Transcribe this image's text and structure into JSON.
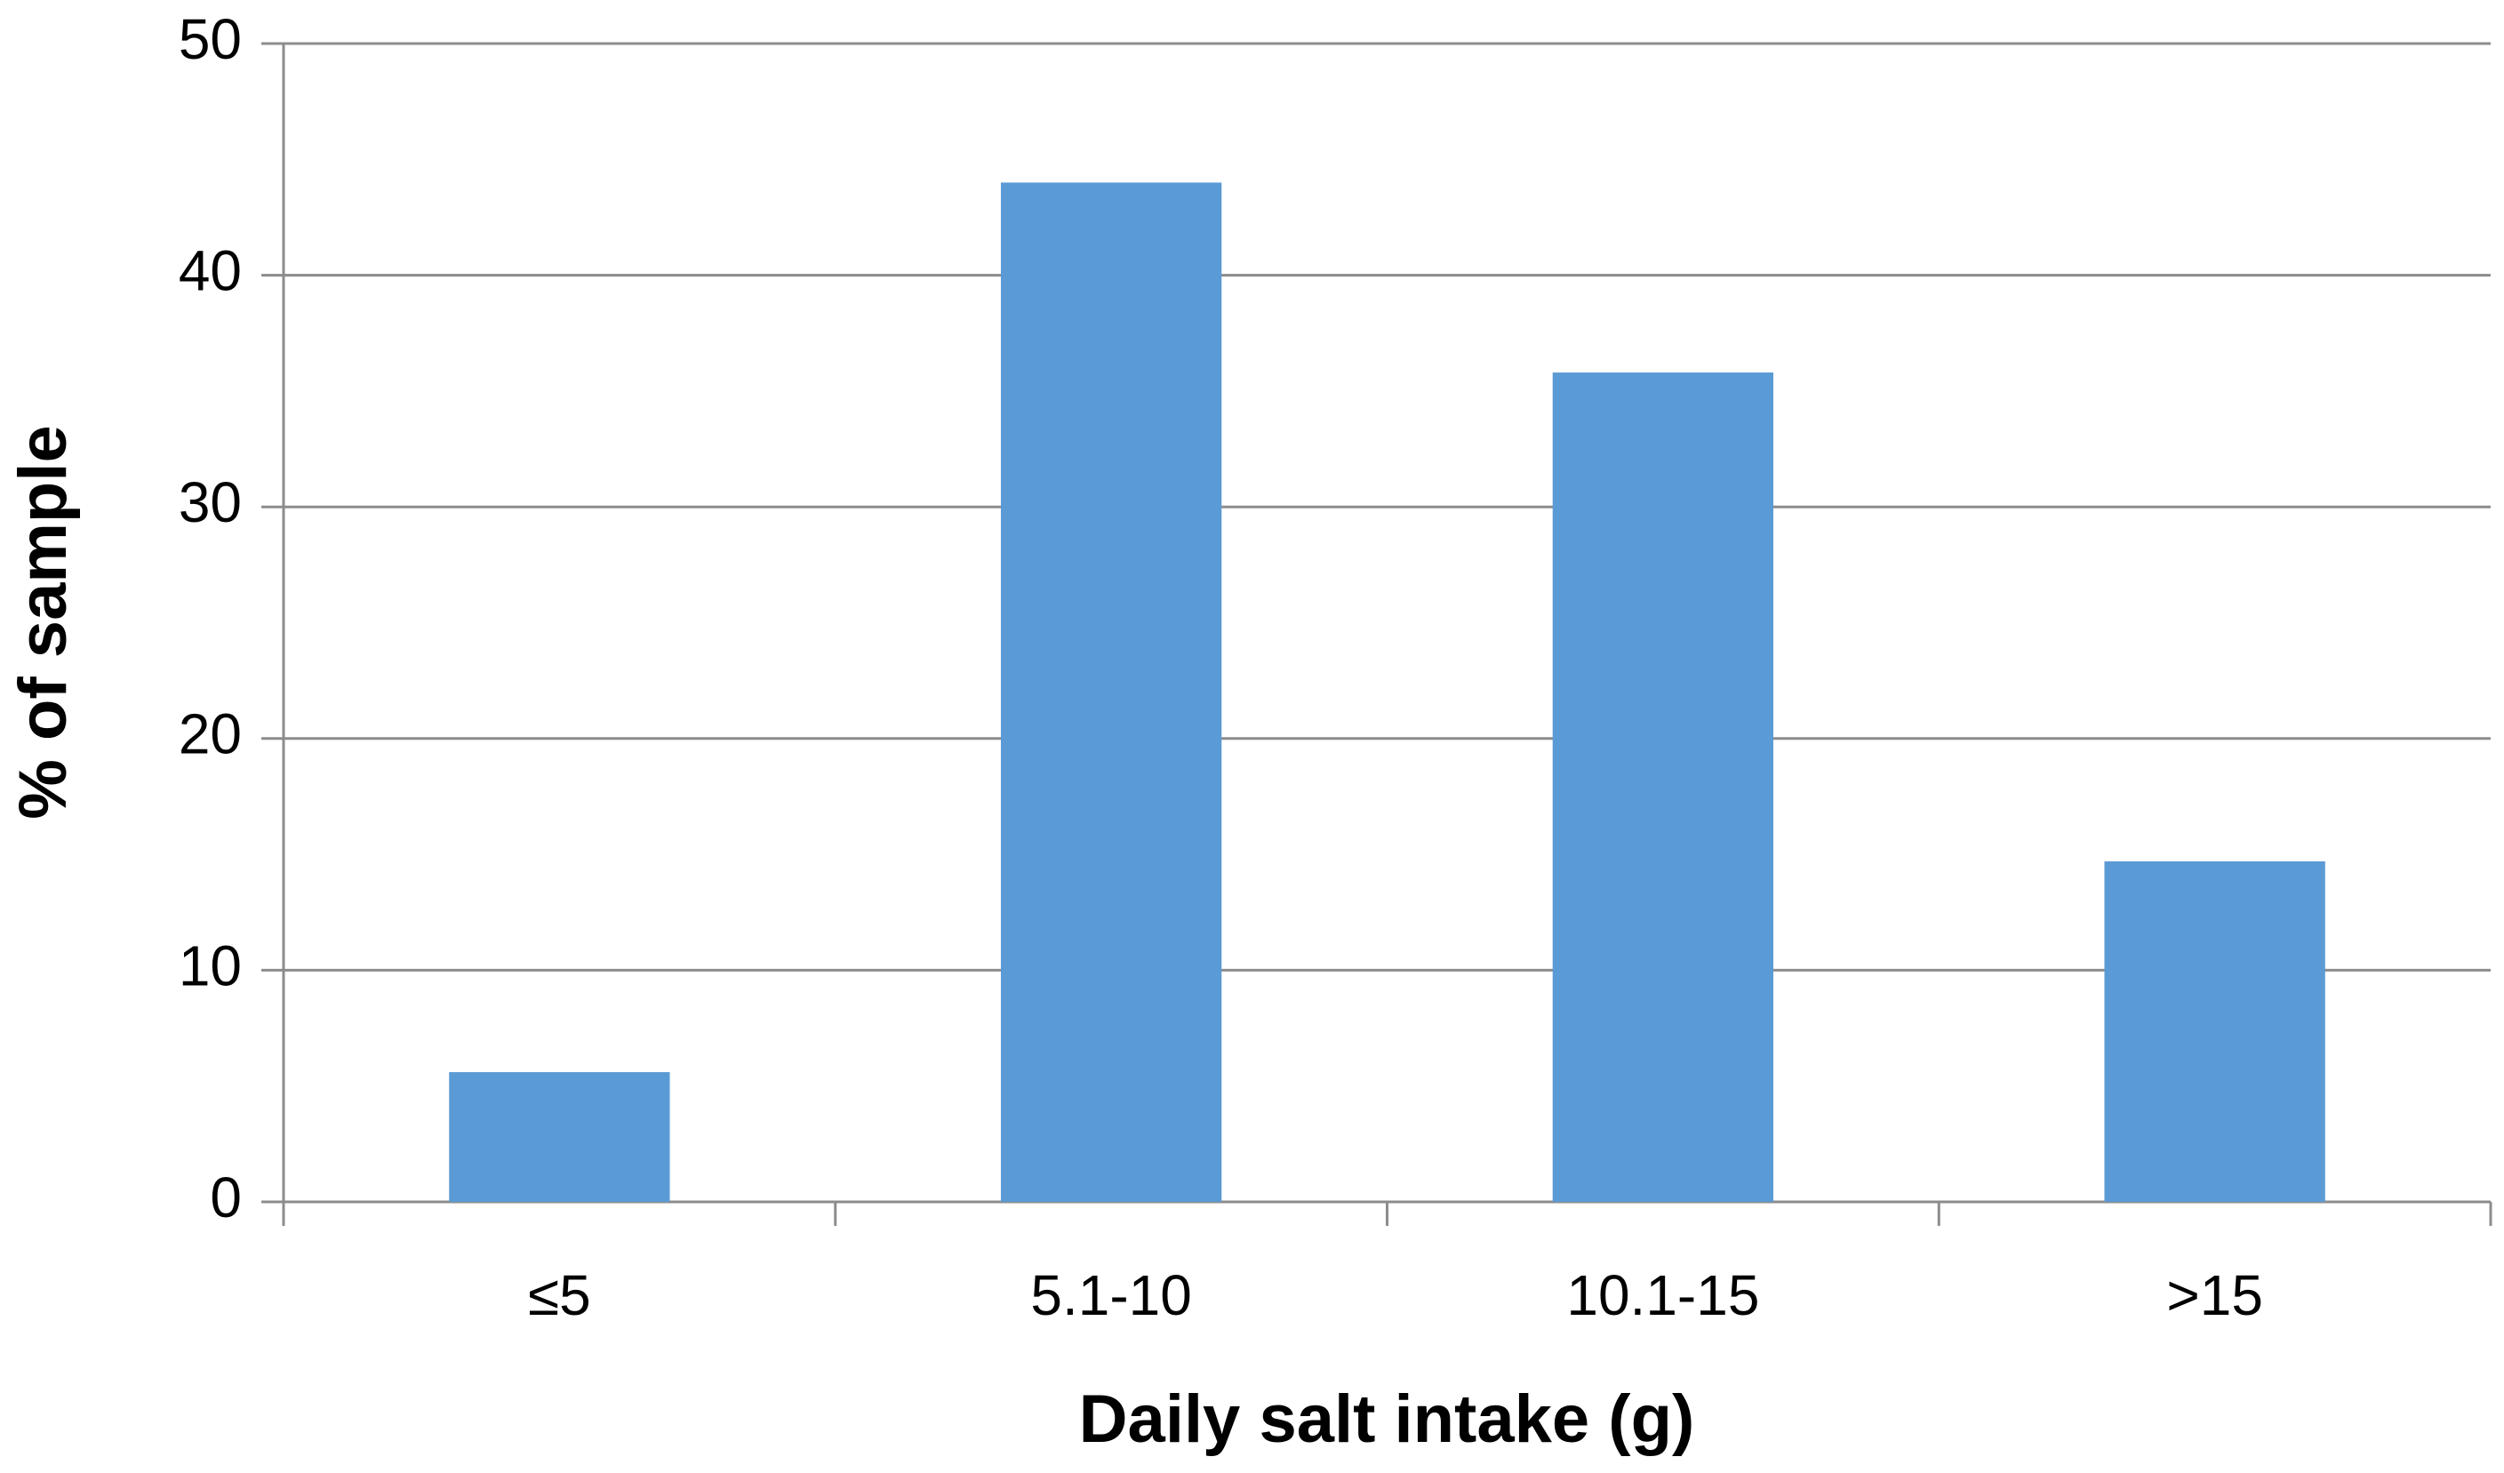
{
  "chart_data": {
    "type": "bar",
    "x_label": "Daily salt intake (g)",
    "y_label": "% of sample",
    "categories": [
      "≤5",
      "5.1-10",
      "10.1-15",
      ">15"
    ],
    "values": [
      5.6,
      44,
      35.8,
      14.7
    ],
    "color": "#5b9bd5",
    "ylim": [
      0,
      50
    ],
    "yticks": [
      0,
      10,
      20,
      30,
      40,
      50
    ],
    "grid": true
  }
}
